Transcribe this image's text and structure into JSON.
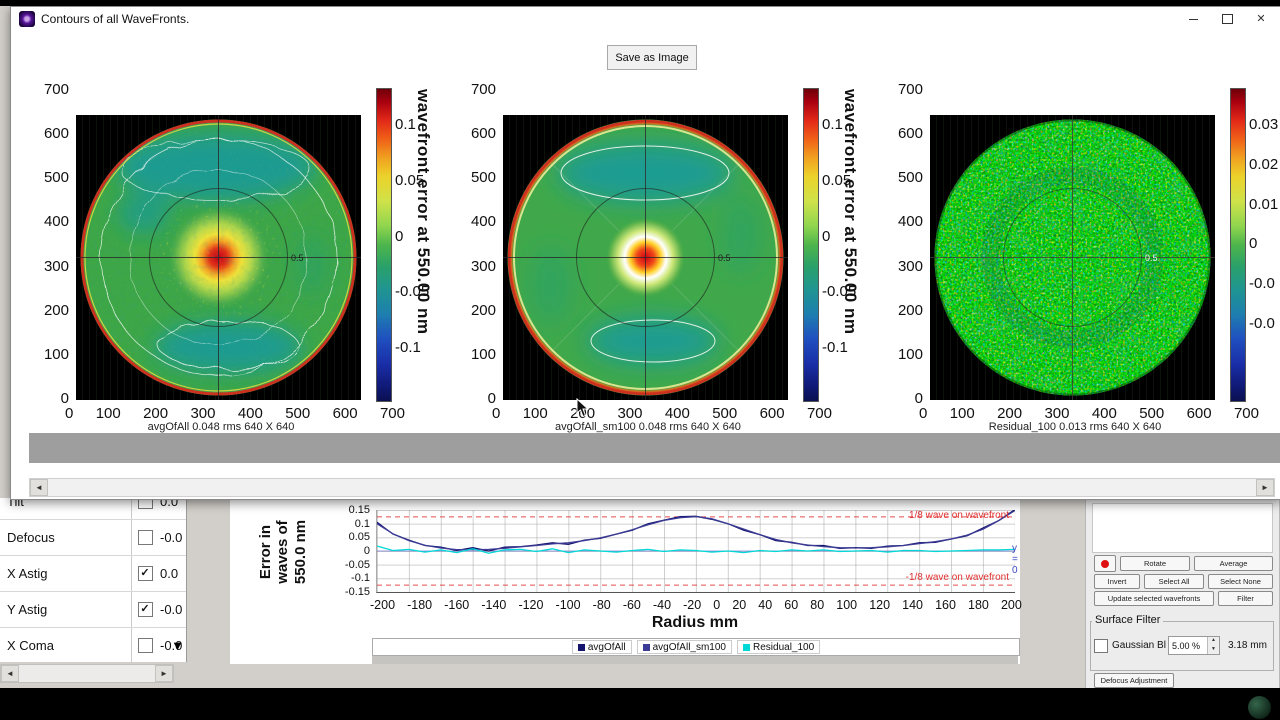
{
  "window": {
    "title": "Contours of all WaveFronts.",
    "save_button_label": "Save as Image"
  },
  "plots": [
    {
      "name": "avgOfAll",
      "caption": "avgOfAll  0.048 rms 640 X 640",
      "y_ticks": [
        "700",
        "600",
        "500",
        "400",
        "300",
        "200",
        "100",
        "0"
      ],
      "x_ticks": [
        "0",
        "100",
        "200",
        "300",
        "400",
        "500",
        "600",
        "700"
      ],
      "colorbar_ticks": [
        "0.1",
        "0.05",
        "0",
        "-0.05",
        "-0.1"
      ],
      "colorbar_label": "wavefront error at 550.00 nm",
      "half_radius_label": "0.5"
    },
    {
      "name": "avgOfAll_sm100",
      "caption": "avgOfAll_sm100  0.048 rms 640 X 640",
      "y_ticks": [
        "700",
        "600",
        "500",
        "400",
        "300",
        "200",
        "100",
        "0"
      ],
      "x_ticks": [
        "0",
        "100",
        "200",
        "300",
        "400",
        "500",
        "600",
        "700"
      ],
      "colorbar_ticks": [
        "0.1",
        "0.05",
        "0",
        "-0.05",
        "-0.1"
      ],
      "colorbar_label": "wavefront error at 550.00 nm",
      "half_radius_label": "0.5"
    },
    {
      "name": "Residual_100",
      "caption": "Residual_100  0.013 rms 640 X 640",
      "y_ticks": [
        "700",
        "600",
        "500",
        "400",
        "300",
        "200",
        "100",
        "0"
      ],
      "x_ticks": [
        "0",
        "100",
        "200",
        "300",
        "400",
        "500",
        "600",
        "700"
      ],
      "colorbar_ticks": [
        "0.03",
        "0.02",
        "0.01",
        "0",
        "-0.0",
        "-0.0"
      ],
      "half_radius_label": "0.5"
    }
  ],
  "zernike_table": {
    "rows": [
      {
        "label": "Tilt",
        "check": "",
        "value": "0.0"
      },
      {
        "label": "Defocus",
        "check": "",
        "value": "-0.0"
      },
      {
        "label": "X Astig",
        "check": "✓",
        "value": "0.0"
      },
      {
        "label": "Y Astig",
        "check": "✓",
        "value": "-0.0"
      },
      {
        "label": "X Coma",
        "check": "",
        "value": "-0.0"
      }
    ]
  },
  "profile": {
    "ylabel_lines": [
      "Error in",
      "waves of",
      "550.0 nm"
    ],
    "y_ticks": [
      "0.15",
      "0.1",
      "0.05",
      "0",
      "-0.05",
      "-0.1",
      "-0.15"
    ],
    "x_ticks": [
      "-200",
      "-180",
      "-160",
      "-140",
      "-120",
      "-100",
      "-80",
      "-60",
      "-40",
      "-20",
      "0",
      "20",
      "40",
      "60",
      "80",
      "100",
      "120",
      "140",
      "160",
      "180",
      "200"
    ]
  },
  "right_panel": {
    "buttons": {
      "rotate": "Rotate",
      "average": "Average",
      "invert": "Invert",
      "select_all": "Select All",
      "select_none": "Select None",
      "update": "Update selected wavefronts",
      "filter": "Filter"
    },
    "surface_filter_title": "Surface Filter",
    "gaussian_checkbox_label": "Gaussian Bl",
    "blur_percent": "5.00 %",
    "blur_mm": "3.18 mm",
    "defocus_button_label": "Defocus Adjustment"
  },
  "chart_data": {
    "type": "line",
    "title": "",
    "xlabel": "Radius mm",
    "ylabel": "Error in waves of 550.0 nm",
    "xlim": [
      -200,
      200
    ],
    "ylim": [
      -0.15,
      0.15
    ],
    "grid": true,
    "legend_position": "bottom",
    "x": [
      -200,
      -190,
      -180,
      -170,
      -160,
      -150,
      -140,
      -130,
      -120,
      -110,
      -100,
      -90,
      -80,
      -70,
      -60,
      -50,
      -40,
      -30,
      -20,
      -10,
      0,
      10,
      20,
      30,
      40,
      50,
      60,
      70,
      80,
      90,
      100,
      110,
      120,
      130,
      140,
      150,
      160,
      170,
      180,
      190,
      200
    ],
    "series": [
      {
        "name": "avgOfAll",
        "color": "#14146e",
        "values": [
          0.105,
          0.062,
          0.04,
          0.02,
          0.014,
          0.002,
          0.012,
          0,
          0.014,
          0.016,
          0.022,
          0.03,
          0.024,
          0.04,
          0.046,
          0.062,
          0.076,
          0.1,
          0.113,
          0.126,
          0.127,
          0.116,
          0.1,
          0.076,
          0.06,
          0.038,
          0.032,
          0.02,
          0.02,
          0.01,
          0.012,
          0.01,
          0.018,
          0.02,
          0.03,
          0.032,
          0.044,
          0.056,
          0.084,
          0.112,
          0.152
        ]
      },
      {
        "name": "avgOfAll_sm100",
        "color": "#3c3c96",
        "values": [
          0.1,
          0.063,
          0.038,
          0.021,
          0.011,
          0.005,
          0.005,
          0.006,
          0.01,
          0.015,
          0.02,
          0.026,
          0.03,
          0.038,
          0.048,
          0.062,
          0.078,
          0.096,
          0.112,
          0.122,
          0.126,
          0.118,
          0.1,
          0.08,
          0.06,
          0.042,
          0.03,
          0.022,
          0.016,
          0.012,
          0.011,
          0.012,
          0.015,
          0.02,
          0.027,
          0.034,
          0.044,
          0.058,
          0.08,
          0.112,
          0.148
        ]
      },
      {
        "name": "Residual_100",
        "color": "#00d8d8",
        "values": [
          0.018,
          0.002,
          0.006,
          -0.004,
          0.004,
          -0.006,
          0.008,
          -0.008,
          0.004,
          0.006,
          -0.002,
          0.008,
          -0.006,
          0.004,
          0,
          -0.004,
          0.002,
          0.006,
          -0.002,
          0.004,
          0.002,
          -0.004,
          0,
          -0.006,
          0.002,
          -0.002,
          0.004,
          0,
          0.004,
          -0.002,
          0,
          0.002,
          -0.004,
          0.002,
          0.002,
          -0.002,
          0,
          0.002,
          0.004,
          0.004,
          0.006
        ]
      }
    ],
    "ref_lines": [
      {
        "y": 0.125,
        "label": "1/8 wave on wavefront",
        "color": "#e03030"
      },
      {
        "y": -0.125,
        "label": "-1/8 wave on wavefront",
        "color": "#e03030"
      }
    ],
    "zero_line": {
      "y": 0,
      "color": "#5560c8",
      "label": "y = 0"
    }
  }
}
